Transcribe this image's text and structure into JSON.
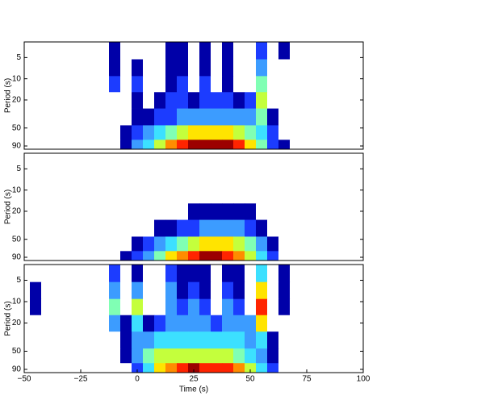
{
  "chart_data": [
    {
      "type": "contour",
      "ylabel": "Period (s)",
      "ylog": true,
      "xlim": [
        -50,
        100
      ],
      "ylim": [
        3,
        100
      ],
      "yticks": [
        5,
        10,
        20,
        50,
        90
      ],
      "colors": [
        "#ffffff",
        "#0000a8",
        "#1c3cff",
        "#3c9cff",
        "#3ce0ff",
        "#80ffb4",
        "#c4ff3c",
        "#ffe400",
        "#ff8c00",
        "#ff2400",
        "#9c0000"
      ],
      "x": [
        -45,
        -40,
        -35,
        -30,
        -25,
        -20,
        -15,
        -10,
        -5,
        0,
        5,
        10,
        15,
        20,
        25,
        30,
        35,
        40,
        45,
        50,
        55,
        60,
        65,
        70
      ],
      "y": [
        4,
        7,
        12,
        20,
        35,
        60,
        90
      ],
      "z": [
        [
          0,
          0,
          0,
          0,
          0,
          0,
          0,
          1,
          0,
          0,
          0,
          0,
          1,
          1,
          0,
          1,
          0,
          1,
          0,
          0,
          2,
          0,
          1,
          0
        ],
        [
          0,
          0,
          0,
          0,
          0,
          0,
          0,
          1,
          0,
          1,
          0,
          0,
          1,
          1,
          0,
          1,
          0,
          1,
          0,
          0,
          3,
          0,
          0,
          0
        ],
        [
          0,
          0,
          0,
          0,
          0,
          0,
          0,
          2,
          0,
          2,
          0,
          0,
          1,
          2,
          0,
          2,
          0,
          1,
          0,
          0,
          5,
          0,
          0,
          0
        ],
        [
          0,
          0,
          0,
          0,
          0,
          0,
          0,
          0,
          0,
          1,
          0,
          1,
          2,
          2,
          1,
          2,
          2,
          2,
          1,
          2,
          6,
          0,
          0,
          0
        ],
        [
          0,
          0,
          0,
          0,
          0,
          0,
          0,
          0,
          0,
          1,
          1,
          2,
          2,
          3,
          3,
          3,
          3,
          3,
          3,
          3,
          5,
          1,
          0,
          0
        ],
        [
          0,
          0,
          0,
          0,
          0,
          0,
          0,
          0,
          1,
          2,
          3,
          4,
          5,
          6,
          7,
          7,
          7,
          7,
          6,
          5,
          4,
          2,
          0,
          0
        ],
        [
          0,
          0,
          0,
          0,
          0,
          0,
          0,
          0,
          1,
          3,
          4,
          6,
          8,
          9,
          10,
          10,
          10,
          10,
          9,
          7,
          5,
          2,
          1,
          0
        ]
      ]
    },
    {
      "type": "contour",
      "ylabel": "Period (s)",
      "ylog": true,
      "xlim": [
        -50,
        100
      ],
      "ylim": [
        3,
        100
      ],
      "yticks": [
        5,
        10,
        20,
        50,
        90
      ],
      "colors": [
        "#ffffff",
        "#0000a8",
        "#1c3cff",
        "#3c9cff",
        "#3ce0ff",
        "#80ffb4",
        "#c4ff3c",
        "#ffe400",
        "#ff8c00",
        "#ff2400",
        "#9c0000"
      ],
      "x": [
        -45,
        -40,
        -35,
        -30,
        -25,
        -20,
        -15,
        -10,
        -5,
        0,
        5,
        10,
        15,
        20,
        25,
        30,
        35,
        40,
        45,
        50,
        55,
        60,
        65,
        70
      ],
      "y": [
        4,
        7,
        12,
        20,
        35,
        60,
        90
      ],
      "z": [
        [
          0,
          0,
          0,
          0,
          0,
          0,
          0,
          0,
          0,
          0,
          0,
          0,
          0,
          0,
          0,
          0,
          0,
          0,
          0,
          0,
          0,
          0,
          0,
          0
        ],
        [
          0,
          0,
          0,
          0,
          0,
          0,
          0,
          0,
          0,
          0,
          0,
          0,
          0,
          0,
          0,
          0,
          0,
          0,
          0,
          0,
          0,
          0,
          0,
          0
        ],
        [
          0,
          0,
          0,
          0,
          0,
          0,
          0,
          0,
          0,
          0,
          0,
          0,
          0,
          0,
          0,
          0,
          0,
          0,
          0,
          0,
          0,
          0,
          0,
          0
        ],
        [
          0,
          0,
          0,
          0,
          0,
          0,
          0,
          0,
          0,
          0,
          0,
          0,
          0,
          0,
          1,
          1,
          1,
          1,
          1,
          1,
          0,
          0,
          0,
          0
        ],
        [
          0,
          0,
          0,
          0,
          0,
          0,
          0,
          0,
          0,
          0,
          0,
          1,
          1,
          2,
          2,
          3,
          3,
          3,
          3,
          2,
          1,
          0,
          0,
          0
        ],
        [
          0,
          0,
          0,
          0,
          0,
          0,
          0,
          0,
          0,
          1,
          2,
          3,
          4,
          5,
          6,
          7,
          7,
          7,
          6,
          5,
          3,
          1,
          0,
          0
        ],
        [
          0,
          0,
          0,
          0,
          0,
          0,
          0,
          0,
          1,
          2,
          3,
          5,
          7,
          8,
          9,
          10,
          10,
          9,
          8,
          6,
          4,
          2,
          0,
          0
        ]
      ]
    },
    {
      "type": "contour",
      "ylabel": "Period (s)",
      "xlabel": "Time (s)",
      "ylog": true,
      "xlim": [
        -50,
        100
      ],
      "ylim": [
        3,
        100
      ],
      "yticks": [
        5,
        10,
        20,
        50,
        90
      ],
      "xticks": [
        {
          "value": -50,
          "label": "−50"
        },
        {
          "value": -25,
          "label": "−25"
        },
        0,
        25,
        50,
        75,
        100
      ],
      "colors": [
        "#ffffff",
        "#0000a8",
        "#1c3cff",
        "#3c9cff",
        "#3ce0ff",
        "#80ffb4",
        "#c4ff3c",
        "#ffe400",
        "#ff8c00",
        "#ff2400",
        "#9c0000"
      ],
      "x": [
        -45,
        -40,
        -35,
        -30,
        -25,
        -20,
        -15,
        -10,
        -5,
        0,
        5,
        10,
        15,
        20,
        25,
        30,
        35,
        40,
        45,
        50,
        55,
        60,
        65,
        70
      ],
      "y": [
        4,
        7,
        12,
        20,
        35,
        60,
        90
      ],
      "z": [
        [
          0,
          0,
          0,
          0,
          0,
          0,
          0,
          2,
          0,
          1,
          0,
          0,
          2,
          1,
          1,
          1,
          0,
          1,
          1,
          0,
          4,
          0,
          1,
          0
        ],
        [
          1,
          0,
          0,
          0,
          0,
          0,
          0,
          3,
          0,
          3,
          0,
          0,
          3,
          1,
          2,
          1,
          0,
          2,
          1,
          0,
          7,
          0,
          1,
          0
        ],
        [
          1,
          0,
          0,
          0,
          0,
          0,
          0,
          5,
          0,
          6,
          0,
          0,
          3,
          2,
          3,
          2,
          0,
          3,
          2,
          0,
          9,
          0,
          1,
          0
        ],
        [
          0,
          0,
          0,
          0,
          0,
          0,
          0,
          3,
          1,
          4,
          1,
          2,
          3,
          3,
          3,
          3,
          2,
          3,
          3,
          3,
          7,
          0,
          0,
          0
        ],
        [
          0,
          0,
          0,
          0,
          0,
          0,
          0,
          0,
          1,
          3,
          3,
          4,
          4,
          4,
          4,
          4,
          4,
          4,
          4,
          3,
          4,
          1,
          0,
          0
        ],
        [
          0,
          0,
          0,
          0,
          0,
          0,
          0,
          0,
          1,
          3,
          5,
          6,
          6,
          6,
          6,
          6,
          6,
          6,
          5,
          4,
          3,
          1,
          0,
          0
        ],
        [
          0,
          0,
          0,
          0,
          0,
          0,
          0,
          0,
          0,
          2,
          4,
          7,
          8,
          9,
          10,
          9,
          9,
          9,
          8,
          6,
          4,
          2,
          0,
          0
        ]
      ]
    }
  ]
}
